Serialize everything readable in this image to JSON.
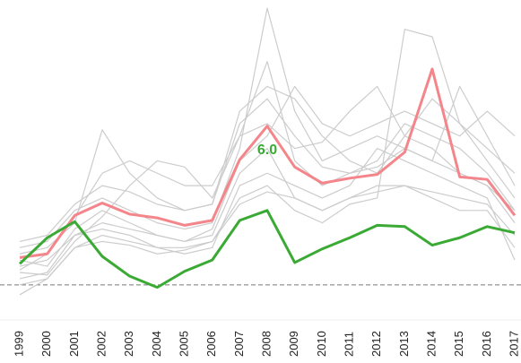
{
  "chart_data": {
    "type": "line",
    "categories": [
      "1999",
      "2000",
      "2001",
      "2002",
      "2003",
      "2004",
      "2005",
      "2006",
      "2007",
      "2008",
      "2009",
      "2010",
      "2011",
      "2012",
      "2013",
      "2014",
      "2015",
      "2016",
      "2017"
    ],
    "ylim": [
      -1.6,
      22.6
    ],
    "reference_line": 0,
    "series": [
      {
        "color": "#cccccc",
        "values": [
          1.5,
          2,
          4,
          5,
          4.5,
          4,
          3.5,
          4,
          9,
          11,
          7,
          6,
          7,
          8,
          8,
          7,
          6,
          6,
          3
        ]
      },
      {
        "color": "#cccccc",
        "values": [
          3,
          3.5,
          6,
          7,
          6,
          5,
          4.5,
          5,
          11,
          22.3,
          14,
          10,
          11,
          12,
          11,
          10,
          9,
          8,
          5
        ]
      },
      {
        "color": "#cccccc",
        "values": [
          0.5,
          1,
          4,
          4.5,
          4,
          3,
          3,
          3.5,
          7,
          8,
          6,
          5,
          6.5,
          7,
          20.6,
          20,
          13,
          10,
          7
        ]
      },
      {
        "color": "#cccccc",
        "values": [
          2.5,
          3,
          5,
          12.5,
          9,
          7,
          6,
          6.5,
          14,
          16,
          15,
          12,
          10,
          9,
          12,
          15,
          13,
          11,
          9
        ]
      },
      {
        "color": "#cccccc",
        "values": [
          1,
          0.8,
          3.5,
          5.5,
          8,
          10,
          9.5,
          7,
          12,
          13,
          11,
          11.5,
          14,
          16,
          12,
          11,
          9,
          8,
          6
        ]
      },
      {
        "color": "#cccccc",
        "values": [
          -0.8,
          0.5,
          3,
          4,
          3.5,
          3,
          2.5,
          3,
          8,
          9,
          8,
          7,
          8,
          11,
          10,
          9,
          8,
          7,
          2
        ]
      },
      {
        "color": "#cccccc",
        "values": [
          2,
          1.5,
          4.5,
          6,
          5,
          4,
          3.5,
          4.5,
          10,
          12,
          16,
          13,
          12,
          13,
          14,
          13,
          12,
          14,
          12
        ]
      },
      {
        "color": "#cccccc",
        "values": [
          3.5,
          4,
          6.5,
          8,
          7.5,
          6.5,
          6,
          6.5,
          13,
          15,
          12,
          9.5,
          9,
          10,
          13,
          12,
          11,
          9,
          6
        ]
      },
      {
        "color": "#cccccc",
        "values": [
          0,
          0.5,
          3,
          3.5,
          3.2,
          2.5,
          2.8,
          3.5,
          6.5,
          7.5,
          7,
          6,
          7,
          7.5,
          8,
          7.5,
          7,
          6.5,
          4
        ]
      },
      {
        "color": "#cccccc",
        "values": [
          1.2,
          2.5,
          5.5,
          9,
          10,
          9,
          8,
          8,
          12,
          18,
          10,
          8,
          9,
          9.5,
          11,
          10,
          16,
          12,
          8
        ]
      },
      {
        "color": "#f4858a",
        "values": [
          2.2,
          2.5,
          5.6,
          6.6,
          5.7,
          5.4,
          4.8,
          5.2,
          10.1,
          12.8,
          9.5,
          8.2,
          8.6,
          8.9,
          10.7,
          17.4,
          8.7,
          8.5,
          5.6
        ]
      },
      {
        "color": "#3aaa35",
        "values": [
          1.7,
          3.8,
          5.1,
          2.3,
          0.7,
          -0.2,
          1.1,
          2.0,
          5.2,
          6.0,
          1.8,
          2.9,
          3.8,
          4.8,
          4.7,
          3.2,
          3.8,
          4.7,
          4.2
        ]
      }
    ],
    "annotation": {
      "text": "6.0",
      "x": "2008",
      "color": "#3aaa35"
    }
  }
}
